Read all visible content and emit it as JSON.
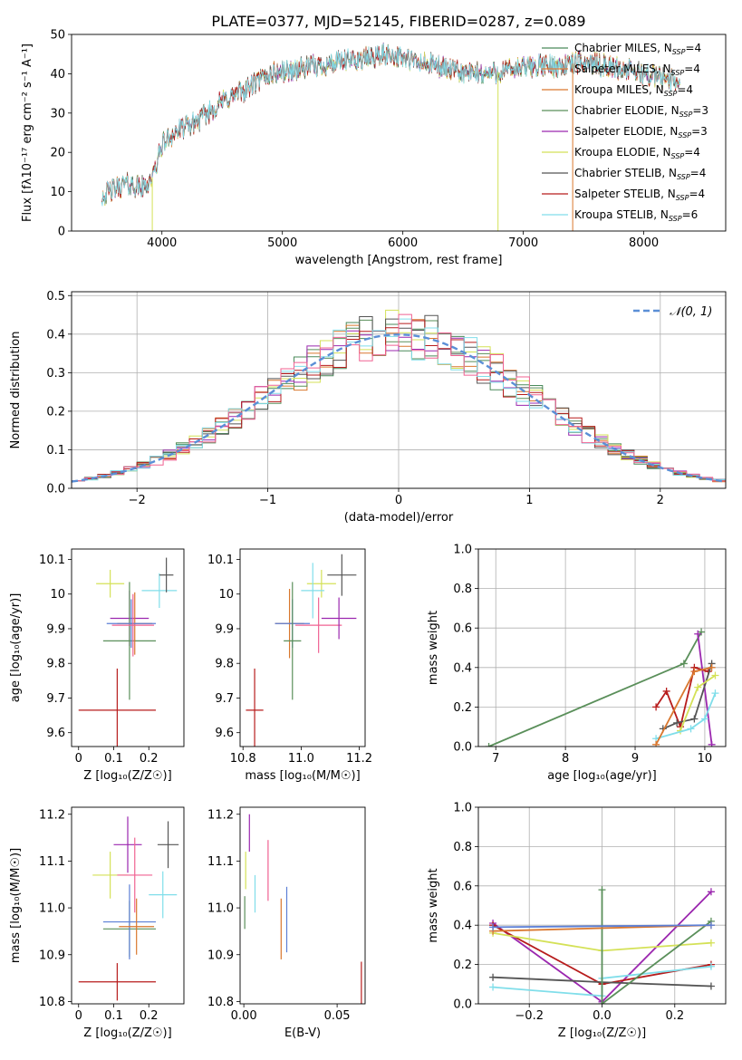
{
  "figure_title": "PLATE=0377, MJD=52145, FIBERID=0287, z=0.089",
  "colors": {
    "Chabrier MILES": "#4a8a5a",
    "Salpeter MILES": "#e07b39",
    "Kroupa MILES": "#d9772e",
    "Chabrier ELODIE": "#5a8f5a",
    "Salpeter ELODIE": "#9b27af",
    "Kroupa ELODIE": "#d4e157",
    "Chabrier STELIB": "#555555",
    "Salpeter STELIB": "#b71c1c",
    "Kroupa STELIB": "#80deea",
    "pink": "#f06292",
    "blue": "#5c7fd6",
    "normal_curve": "#5b8fd6"
  },
  "chart_data": [
    {
      "id": "spectrum",
      "type": "line",
      "xlabel": "wavelength [Angstrom, rest frame]",
      "ylabel": "Flux [fλ10⁻¹⁷ erg cm⁻² s⁻¹ A⁻¹]",
      "xlim": [
        3250,
        8680
      ],
      "ylim": [
        0,
        50
      ],
      "xticks": [
        4000,
        5000,
        6000,
        7000,
        8000
      ],
      "yticks": [
        0,
        10,
        20,
        30,
        40,
        50
      ],
      "continuum": [
        [
          3500,
          9
        ],
        [
          3700,
          12
        ],
        [
          3850,
          11
        ],
        [
          3930,
          14
        ],
        [
          4000,
          22
        ],
        [
          4100,
          25
        ],
        [
          4300,
          28
        ],
        [
          4500,
          33
        ],
        [
          4700,
          36
        ],
        [
          4900,
          40
        ],
        [
          5100,
          41
        ],
        [
          5300,
          42
        ],
        [
          5500,
          43
        ],
        [
          5700,
          44
        ],
        [
          5900,
          45
        ],
        [
          6100,
          43
        ],
        [
          6300,
          42
        ],
        [
          6500,
          40
        ],
        [
          6700,
          40
        ],
        [
          6900,
          41
        ],
        [
          7100,
          42
        ],
        [
          7300,
          42
        ],
        [
          7500,
          43
        ],
        [
          7700,
          42
        ],
        [
          8000,
          40
        ],
        [
          8300,
          38
        ]
      ],
      "series_order": [
        "Chabrier MILES",
        "Salpeter MILES",
        "Kroupa MILES",
        "Chabrier ELODIE",
        "Salpeter ELODIE",
        "Kroupa ELODIE",
        "Chabrier STELIB",
        "Salpeter STELIB",
        "Kroupa STELIB"
      ],
      "legend": [
        {
          "label": "Chabrier MILES, N",
          "sub": "SSP",
          "suffix": "=4"
        },
        {
          "label": "Salpeter MILES, N",
          "sub": "SSP",
          "suffix": "=4"
        },
        {
          "label": "Kroupa MILES, N",
          "sub": "SSP",
          "suffix": "=4"
        },
        {
          "label": "Chabrier ELODIE, N",
          "sub": "SSP",
          "suffix": "=3"
        },
        {
          "label": "Salpeter ELODIE, N",
          "sub": "SSP",
          "suffix": "=3"
        },
        {
          "label": "Kroupa ELODIE, N",
          "sub": "SSP",
          "suffix": "=4"
        },
        {
          "label": "Chabrier STELIB, N",
          "sub": "SSP",
          "suffix": "=4"
        },
        {
          "label": "Salpeter STELIB, N",
          "sub": "SSP",
          "suffix": "=4"
        },
        {
          "label": "Kroupa STELIB, N",
          "sub": "SSP",
          "suffix": "=6"
        }
      ],
      "legend_position": "upper right"
    },
    {
      "id": "residuals",
      "type": "line",
      "xlabel": "(data-model)/error",
      "ylabel": "Normed distribution",
      "xlim": [
        -2.5,
        2.5
      ],
      "ylim": [
        0,
        0.51
      ],
      "xticks": [
        -2,
        -1,
        0,
        1,
        2
      ],
      "xticklabels": [
        "−2",
        "−1",
        "0",
        "1",
        "2"
      ],
      "yticks": [
        0.0,
        0.1,
        0.2,
        0.3,
        0.4,
        0.5
      ],
      "yticklabels": [
        "0.0",
        "0.1",
        "0.2",
        "0.3",
        "0.4",
        "0.5"
      ],
      "bin_width": 0.1,
      "grid": true,
      "legend": "𝒩(0, 1)",
      "legend_position": "upper right"
    },
    {
      "id": "age_vs_z",
      "type": "scatter",
      "xlabel": "Z [log₁₀(Z/Z☉)]",
      "ylabel": "age  [log₁₀(age/yr)]",
      "xlim": [
        -0.02,
        0.3
      ],
      "ylim": [
        9.56,
        10.13
      ],
      "xticks": [
        0.0,
        0.1,
        0.2
      ],
      "yticks": [
        9.6,
        9.7,
        9.8,
        9.9,
        10.0,
        10.1
      ],
      "points": [
        {
          "s": "Salpeter STELIB",
          "x": 0.11,
          "y": 9.665,
          "xe": 0.11,
          "ye": 0.12
        },
        {
          "s": "Kroupa ELODIE",
          "x": 0.09,
          "y": 10.03,
          "xe": 0.04,
          "ye": 0.04
        },
        {
          "s": "Salpeter ELODIE",
          "x": 0.145,
          "y": 9.93,
          "xe": 0.055,
          "ye": 0.08
        },
        {
          "s": "Chabrier ELODIE",
          "x": 0.145,
          "y": 9.865,
          "xe": 0.075,
          "ye": 0.17
        },
        {
          "s": "Kroupa MILES",
          "x": 0.16,
          "y": 9.915,
          "xe": 0.05,
          "ye": 0.09
        },
        {
          "s": "blue",
          "x": 0.15,
          "y": 9.915,
          "xe": 0.07,
          "ye": 0.07
        },
        {
          "s": "pink",
          "x": 0.155,
          "y": 9.91,
          "xe": 0.06,
          "ye": 0.09
        },
        {
          "s": "Kroupa STELIB",
          "x": 0.23,
          "y": 10.01,
          "xe": 0.05,
          "ye": 0.05
        },
        {
          "s": "Chabrier STELIB",
          "x": 0.25,
          "y": 10.055,
          "xe": 0.02,
          "ye": 0.05
        }
      ]
    },
    {
      "id": "age_vs_mass",
      "type": "scatter",
      "xlabel": "mass [log₁₀(M/M☉)]",
      "ylabel": "",
      "xlim": [
        10.79,
        11.22
      ],
      "ylim": [
        9.56,
        10.13
      ],
      "xticks": [
        10.8,
        11.0,
        11.2
      ],
      "xticklabels": [
        "10.8",
        "11.0",
        "11.2"
      ],
      "yticks": [
        9.6,
        9.7,
        9.8,
        9.9,
        10.0,
        10.1
      ],
      "points": [
        {
          "s": "Salpeter STELIB",
          "x": 10.84,
          "y": 9.665,
          "xe": 0.03,
          "ye": 0.12
        },
        {
          "s": "Kroupa MILES",
          "x": 10.96,
          "y": 9.915,
          "xe": 0.05,
          "ye": 0.1
        },
        {
          "s": "blue",
          "x": 10.97,
          "y": 9.915,
          "xe": 0.06,
          "ye": 0.07
        },
        {
          "s": "Chabrier ELODIE",
          "x": 10.97,
          "y": 9.865,
          "xe": 0.03,
          "ye": 0.17
        },
        {
          "s": "pink",
          "x": 11.06,
          "y": 9.91,
          "xe": 0.08,
          "ye": 0.08
        },
        {
          "s": "Kroupa ELODIE",
          "x": 11.07,
          "y": 10.03,
          "xe": 0.05,
          "ye": 0.04
        },
        {
          "s": "Kroupa STELIB",
          "x": 11.04,
          "y": 10.01,
          "xe": 0.04,
          "ye": 0.08
        },
        {
          "s": "Salpeter ELODIE",
          "x": 11.13,
          "y": 9.93,
          "xe": 0.06,
          "ye": 0.06
        },
        {
          "s": "Chabrier STELIB",
          "x": 11.14,
          "y": 10.055,
          "xe": 0.05,
          "ye": 0.06
        }
      ]
    },
    {
      "id": "mass_weight_vs_age",
      "type": "line",
      "xlabel": "age  [log₁₀(age/yr)]",
      "ylabel": "mass weight",
      "xlim": [
        6.75,
        10.3
      ],
      "ylim": [
        0,
        1
      ],
      "xticks": [
        7,
        8,
        9,
        10
      ],
      "yticks": [
        0.0,
        0.2,
        0.4,
        0.6,
        0.8,
        1.0
      ],
      "yticklabels": [
        "0.0",
        "0.2",
        "0.4",
        "0.6",
        "0.8",
        "1.0"
      ],
      "grid": true,
      "series": [
        {
          "s": "Chabrier ELODIE",
          "pts": [
            [
              6.9,
              0.0
            ],
            [
              9.7,
              0.42
            ],
            [
              9.95,
              0.58
            ]
          ]
        },
        {
          "s": "Salpeter ELODIE",
          "pts": [
            [
              9.9,
              0.57
            ],
            [
              10.1,
              0.01
            ]
          ]
        },
        {
          "s": "Salpeter STELIB",
          "pts": [
            [
              9.3,
              0.2
            ],
            [
              9.45,
              0.28
            ],
            [
              9.65,
              0.1
            ],
            [
              9.85,
              0.4
            ],
            [
              10.05,
              0.38
            ]
          ]
        },
        {
          "s": "Chabrier STELIB",
          "pts": [
            [
              9.4,
              0.09
            ],
            [
              9.6,
              0.12
            ],
            [
              9.85,
              0.14
            ],
            [
              10.1,
              0.42
            ]
          ]
        },
        {
          "s": "Kroupa ELODIE",
          "pts": [
            [
              9.65,
              0.08
            ],
            [
              9.9,
              0.3
            ],
            [
              10.15,
              0.36
            ]
          ]
        },
        {
          "s": "Kroupa STELIB",
          "pts": [
            [
              9.3,
              0.04
            ],
            [
              9.8,
              0.09
            ],
            [
              10.0,
              0.14
            ],
            [
              10.15,
              0.27
            ]
          ]
        },
        {
          "s": "Kroupa MILES",
          "pts": [
            [
              9.3,
              0.01
            ],
            [
              9.85,
              0.38
            ],
            [
              10.1,
              0.4
            ]
          ]
        }
      ]
    },
    {
      "id": "mass_vs_z",
      "type": "scatter",
      "xlabel": "Z [log₁₀(Z/Z☉)]",
      "ylabel": "mass [log₁₀(M/M☉)]",
      "xlim": [
        -0.02,
        0.3
      ],
      "ylim": [
        10.795,
        11.215
      ],
      "xticks": [
        0.0,
        0.1,
        0.2
      ],
      "yticks": [
        10.8,
        10.9,
        11.0,
        11.1,
        11.2
      ],
      "yticklabels": [
        "10.8",
        "10.9",
        "11.0",
        "11.1",
        "11.2"
      ],
      "points": [
        {
          "s": "Salpeter STELIB",
          "x": 0.11,
          "y": 10.842,
          "xe": 0.11,
          "ye": 0.04
        },
        {
          "s": "Kroupa ELODIE",
          "x": 0.09,
          "y": 11.07,
          "xe": 0.05,
          "ye": 0.05
        },
        {
          "s": "Salpeter ELODIE",
          "x": 0.14,
          "y": 11.135,
          "xe": 0.04,
          "ye": 0.06
        },
        {
          "s": "pink",
          "x": 0.16,
          "y": 11.07,
          "xe": 0.05,
          "ye": 0.08
        },
        {
          "s": "Chabrier ELODIE",
          "x": 0.145,
          "y": 10.955,
          "xe": 0.075,
          "ye": 0.06
        },
        {
          "s": "blue",
          "x": 0.145,
          "y": 10.97,
          "xe": 0.075,
          "ye": 0.08
        },
        {
          "s": "Kroupa MILES",
          "x": 0.165,
          "y": 10.96,
          "xe": 0.05,
          "ye": 0.06
        },
        {
          "s": "Kroupa STELIB",
          "x": 0.24,
          "y": 11.028,
          "xe": 0.04,
          "ye": 0.05
        },
        {
          "s": "Chabrier STELIB",
          "x": 0.255,
          "y": 11.135,
          "xe": 0.03,
          "ye": 0.05
        }
      ]
    },
    {
      "id": "mass_vs_ebv",
      "type": "scatter",
      "xlabel": "E(B-V)",
      "ylabel": "",
      "xlim": [
        -0.002,
        0.065
      ],
      "ylim": [
        10.795,
        11.215
      ],
      "xticks": [
        0.0,
        0.05
      ],
      "xticklabels": [
        "0.00",
        "0.05"
      ],
      "yticks": [
        10.8,
        10.9,
        11.0,
        11.1,
        11.2
      ],
      "yticklabels": [
        "10.8",
        "10.9",
        "11.0",
        "11.1",
        "11.2"
      ],
      "points": [
        {
          "s": "Chabrier ELODIE",
          "x": 0.0005,
          "y": 10.99,
          "xe": 0,
          "ye": 0.035
        },
        {
          "s": "Kroupa ELODIE",
          "x": 0.001,
          "y": 11.08,
          "xe": 0,
          "ye": 0.04
        },
        {
          "s": "Salpeter ELODIE",
          "x": 0.003,
          "y": 11.16,
          "xe": 0,
          "ye": 0.04
        },
        {
          "s": "Kroupa STELIB",
          "x": 0.006,
          "y": 11.03,
          "xe": 0,
          "ye": 0.04
        },
        {
          "s": "pink",
          "x": 0.013,
          "y": 11.08,
          "xe": 0,
          "ye": 0.065
        },
        {
          "s": "Kroupa MILES",
          "x": 0.02,
          "y": 10.955,
          "xe": 0,
          "ye": 0.065
        },
        {
          "s": "blue",
          "x": 0.023,
          "y": 10.975,
          "xe": 0,
          "ye": 0.07
        },
        {
          "s": "Salpeter STELIB",
          "x": 0.063,
          "y": 10.84,
          "xe": 0,
          "ye": 0.045
        }
      ]
    },
    {
      "id": "mass_weight_vs_z",
      "type": "line",
      "xlabel": "Z [log₁₀(Z/Z☉)]",
      "ylabel": "mass weight",
      "xlim": [
        -0.34,
        0.34
      ],
      "ylim": [
        0,
        1
      ],
      "xticks": [
        -0.2,
        0.0,
        0.2
      ],
      "xticklabels": [
        "−0.2",
        "0.0",
        "0.2"
      ],
      "yticks": [
        0.0,
        0.2,
        0.4,
        0.6,
        0.8,
        1.0
      ],
      "yticklabels": [
        "0.0",
        "0.2",
        "0.4",
        "0.6",
        "0.8",
        "1.0"
      ],
      "grid": true,
      "series": [
        {
          "s": "Salpeter ELODIE",
          "pts": [
            [
              -0.3,
              0.41
            ],
            [
              0.0,
              0.01
            ],
            [
              0.3,
              0.57
            ]
          ]
        },
        {
          "s": "Salpeter STELIB",
          "pts": [
            [
              -0.3,
              0.4
            ],
            [
              0.0,
              0.1
            ],
            [
              0.3,
              0.2
            ]
          ]
        },
        {
          "s": "Chabrier STELIB",
          "pts": [
            [
              -0.3,
              0.135
            ],
            [
              0.0,
              0.11
            ],
            [
              0.3,
              0.09
            ]
          ]
        },
        {
          "s": "Kroupa ELODIE",
          "pts": [
            [
              -0.3,
              0.36
            ],
            [
              0.0,
              0.27
            ],
            [
              0.3,
              0.31
            ]
          ]
        },
        {
          "s": "Kroupa STELIB",
          "pts": [
            [
              -0.3,
              0.085
            ],
            [
              0.0,
              0.04
            ],
            [
              0.0,
              0.13
            ],
            [
              0.3,
              0.19
            ]
          ]
        },
        {
          "s": "Chabrier ELODIE",
          "pts": [
            [
              0.0,
              0.58
            ],
            [
              0.0,
              0.0
            ],
            [
              0.3,
              0.42
            ]
          ]
        },
        {
          "s": "Kroupa MILES",
          "pts": [
            [
              -0.3,
              0.37
            ],
            [
              0.3,
              0.4
            ]
          ]
        },
        {
          "s": "blue",
          "pts": [
            [
              -0.3,
              0.39
            ],
            [
              0.3,
              0.4
            ]
          ]
        }
      ]
    }
  ]
}
